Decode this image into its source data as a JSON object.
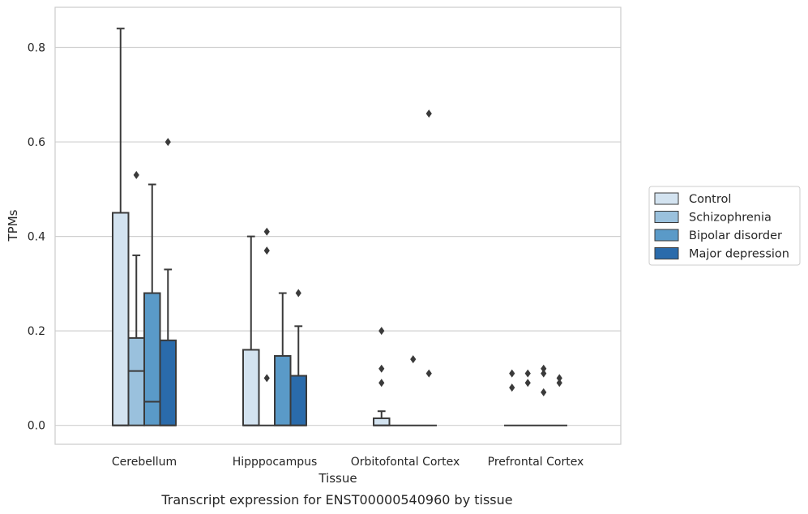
{
  "chart_data": {
    "type": "box",
    "xlabel": "Tissue",
    "ylabel": "TPMs",
    "caption": "Transcript expression for ENST00000540960 by tissue",
    "categories": [
      "Cerebellum",
      "Hipppocampus",
      "Orbitofontal Cortex",
      "Prefrontal Cortex"
    ],
    "ylim": [
      -0.04,
      0.885
    ],
    "yticks": [
      0.0,
      0.2,
      0.4,
      0.6,
      0.8
    ],
    "ytick_labels": [
      "0.0",
      "0.2",
      "0.4",
      "0.6",
      "0.8"
    ],
    "grid": true,
    "legend_position": "right",
    "series": [
      {
        "name": "Control",
        "color": "#d3e3f0",
        "boxes": [
          {
            "q1": 0.0,
            "median": 0.0,
            "q3": 0.45,
            "whisker_low": 0.0,
            "whisker_high": 0.84,
            "outliers": []
          },
          {
            "q1": 0.0,
            "median": 0.0,
            "q3": 0.16,
            "whisker_low": 0.0,
            "whisker_high": 0.4,
            "outliers": []
          },
          {
            "q1": 0.0,
            "median": 0.0,
            "q3": 0.015,
            "whisker_low": 0.0,
            "whisker_high": 0.03,
            "outliers": [
              0.09,
              0.12,
              0.2
            ]
          },
          {
            "q1": 0.0,
            "median": 0.0,
            "q3": 0.0,
            "whisker_low": 0.0,
            "whisker_high": 0.0,
            "outliers": [
              0.08,
              0.11
            ]
          }
        ]
      },
      {
        "name": "Schizophrenia",
        "color": "#9ac1dd",
        "boxes": [
          {
            "q1": 0.0,
            "median": 0.115,
            "q3": 0.185,
            "whisker_low": 0.0,
            "whisker_high": 0.36,
            "outliers": [
              0.53
            ]
          },
          {
            "q1": 0.0,
            "median": 0.0,
            "q3": 0.0,
            "whisker_low": 0.0,
            "whisker_high": 0.0,
            "outliers": [
              0.1,
              0.37,
              0.41
            ]
          },
          {
            "q1": 0.0,
            "median": 0.0,
            "q3": 0.0,
            "whisker_low": 0.0,
            "whisker_high": 0.0,
            "outliers": []
          },
          {
            "q1": 0.0,
            "median": 0.0,
            "q3": 0.0,
            "whisker_low": 0.0,
            "whisker_high": 0.0,
            "outliers": [
              0.09,
              0.11
            ]
          }
        ]
      },
      {
        "name": "Bipolar disorder",
        "color": "#5a9ac8",
        "boxes": [
          {
            "q1": 0.0,
            "median": 0.05,
            "q3": 0.28,
            "whisker_low": 0.0,
            "whisker_high": 0.51,
            "outliers": []
          },
          {
            "q1": 0.0,
            "median": 0.0,
            "q3": 0.147,
            "whisker_low": 0.0,
            "whisker_high": 0.28,
            "outliers": []
          },
          {
            "q1": 0.0,
            "median": 0.0,
            "q3": 0.0,
            "whisker_low": 0.0,
            "whisker_high": 0.0,
            "outliers": [
              0.14
            ]
          },
          {
            "q1": 0.0,
            "median": 0.0,
            "q3": 0.0,
            "whisker_low": 0.0,
            "whisker_high": 0.0,
            "outliers": [
              0.07,
              0.11,
              0.12
            ]
          }
        ]
      },
      {
        "name": "Major depression",
        "color": "#2a6bab",
        "boxes": [
          {
            "q1": 0.0,
            "median": 0.0,
            "q3": 0.18,
            "whisker_low": 0.0,
            "whisker_high": 0.33,
            "outliers": [
              0.6
            ]
          },
          {
            "q1": 0.0,
            "median": 0.0,
            "q3": 0.105,
            "whisker_low": 0.0,
            "whisker_high": 0.21,
            "outliers": [
              0.28
            ]
          },
          {
            "q1": 0.0,
            "median": 0.0,
            "q3": 0.0,
            "whisker_low": 0.0,
            "whisker_high": 0.0,
            "outliers": [
              0.11,
              0.66
            ]
          },
          {
            "q1": 0.0,
            "median": 0.0,
            "q3": 0.0,
            "whisker_low": 0.0,
            "whisker_high": 0.0,
            "outliers": [
              0.09,
              0.1
            ]
          }
        ]
      }
    ]
  }
}
